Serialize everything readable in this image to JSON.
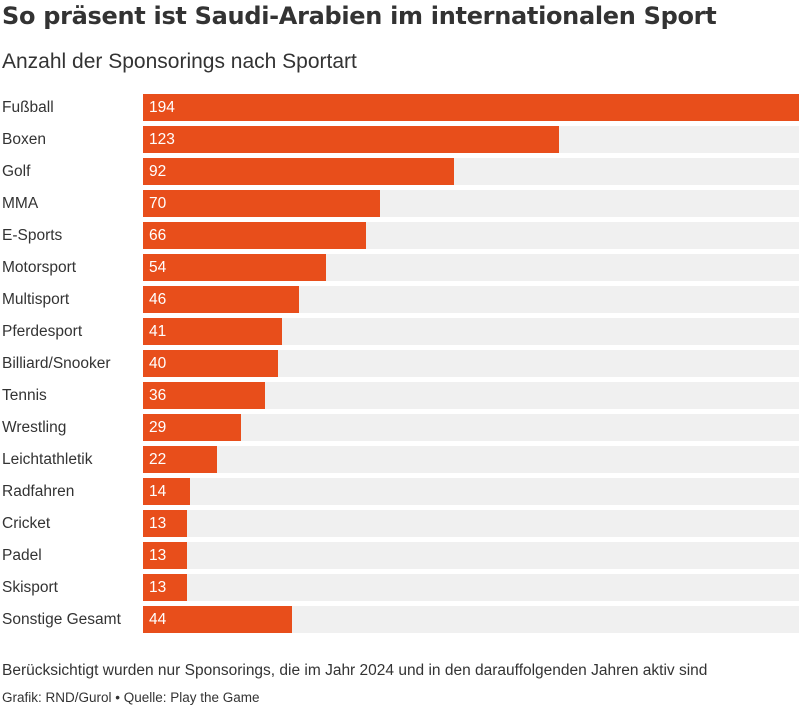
{
  "chart_data": {
    "type": "bar",
    "orientation": "horizontal",
    "title": "So präsent ist Saudi-Arabien im internationalen Sport",
    "subtitle": "Anzahl der Sponsorings nach Sportart",
    "categories": [
      "Fußball",
      "Boxen",
      "Golf",
      "MMA",
      "E-Sports",
      "Motorsport",
      "Multisport",
      "Pferdesport",
      "Billiard/Snooker",
      "Tennis",
      "Wrestling",
      "Leichtathletik",
      "Radfahren",
      "Cricket",
      "Padel",
      "Skisport",
      "Sonstige Gesamt"
    ],
    "values": [
      194,
      123,
      92,
      70,
      66,
      54,
      46,
      41,
      40,
      36,
      29,
      22,
      14,
      13,
      13,
      13,
      44
    ],
    "xlim": [
      0,
      194
    ],
    "grid": false,
    "legend": "none",
    "bar_color": "#e84e1b",
    "track_color": "#f0f0f0"
  },
  "footer": {
    "note": "Berücksichtigt wurden nur Sponsorings, die im Jahr 2024 und in den darauffolgenden Jahren aktiv sind",
    "credit": "Grafik: RND/Gurol • Quelle: Play the Game"
  }
}
